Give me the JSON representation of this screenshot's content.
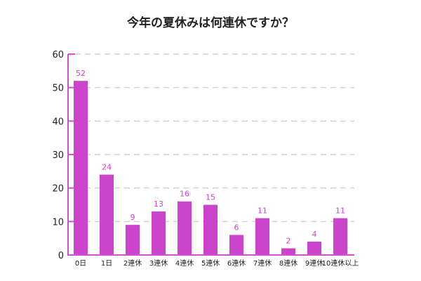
{
  "chart_data": {
    "type": "bar",
    "title": "今年の夏休みは何連休ですか？",
    "categories": [
      "0日",
      "1日",
      "2連休",
      "3連休",
      "4連休",
      "5連休",
      "6連休",
      "7連休",
      "8連休",
      "9連休",
      "10連休以上"
    ],
    "values": [
      52,
      24,
      9,
      13,
      16,
      15,
      6,
      11,
      2,
      4,
      11
    ],
    "xlabel": "",
    "ylabel": "",
    "ylim": [
      0,
      60
    ],
    "yticks": [
      0,
      10,
      20,
      30,
      40,
      50,
      60
    ],
    "grid": true,
    "data_labels": true,
    "colors": {
      "bar": "#cc44cc",
      "axis": "#d050d0",
      "label": "#cc44cc",
      "grid": "#c8c8c8"
    }
  }
}
